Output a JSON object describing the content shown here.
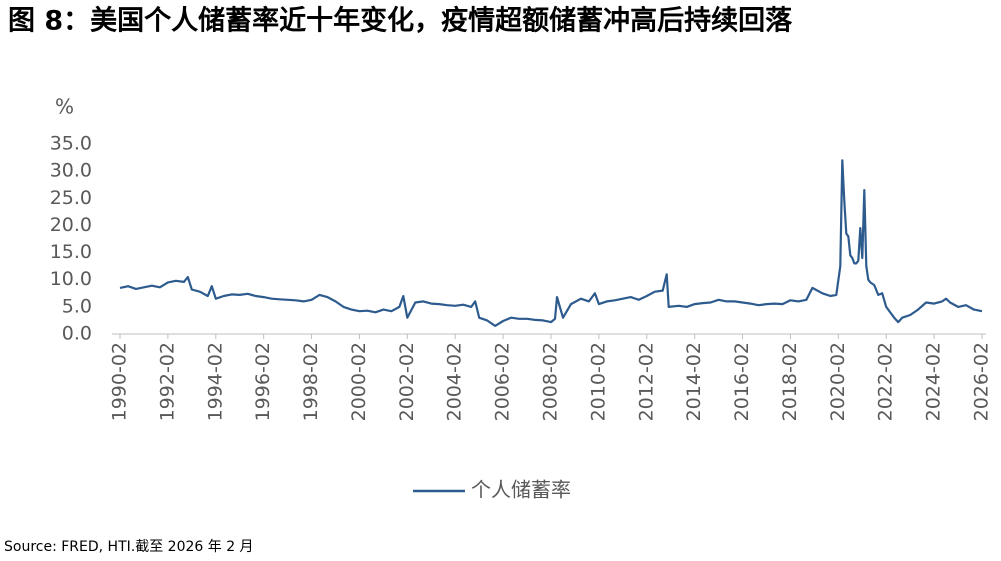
{
  "chart_data": {
    "type": "line",
    "title": "图 8：美国个人储蓄率近十年变化，疫情超额储蓄冲高后持续回落",
    "y_label": "%",
    "source": "Source: FRED, HTI.截至 2026 年 2 月",
    "x": [
      "1990-02",
      "1990-06",
      "1990-10",
      "1991-02",
      "1991-06",
      "1991-10",
      "1992-02",
      "1992-06",
      "1992-10",
      "1992-12",
      "1993-02",
      "1993-06",
      "1993-10",
      "1993-12",
      "1994-02",
      "1994-06",
      "1994-10",
      "1995-02",
      "1995-06",
      "1995-10",
      "1996-02",
      "1996-06",
      "1996-10",
      "1997-02",
      "1997-06",
      "1997-10",
      "1998-02",
      "1998-06",
      "1998-10",
      "1999-02",
      "1999-06",
      "1999-10",
      "2000-02",
      "2000-06",
      "2000-10",
      "2001-02",
      "2001-06",
      "2001-10",
      "2001-12",
      "2002-02",
      "2002-06",
      "2002-10",
      "2003-02",
      "2003-06",
      "2003-10",
      "2004-02",
      "2004-06",
      "2004-10",
      "2004-12",
      "2005-02",
      "2005-06",
      "2005-10",
      "2006-02",
      "2006-06",
      "2006-10",
      "2007-02",
      "2007-06",
      "2007-10",
      "2008-02",
      "2008-04",
      "2008-05",
      "2008-08",
      "2008-12",
      "2009-05",
      "2009-09",
      "2009-12",
      "2010-02",
      "2010-06",
      "2010-10",
      "2011-02",
      "2011-06",
      "2011-10",
      "2012-02",
      "2012-06",
      "2012-10",
      "2012-12",
      "2013-01",
      "2013-06",
      "2013-10",
      "2014-02",
      "2014-06",
      "2014-10",
      "2015-02",
      "2015-06",
      "2015-10",
      "2016-02",
      "2016-06",
      "2016-10",
      "2017-02",
      "2017-06",
      "2017-10",
      "2018-02",
      "2018-06",
      "2018-10",
      "2019-01",
      "2019-06",
      "2019-10",
      "2020-01",
      "2020-03",
      "2020-04",
      "2020-05",
      "2020-06",
      "2020-07",
      "2020-08",
      "2020-09",
      "2020-10",
      "2020-11",
      "2020-12",
      "2021-01",
      "2021-02",
      "2021-03",
      "2021-04",
      "2021-05",
      "2021-06",
      "2021-08",
      "2021-10",
      "2021-12",
      "2022-02",
      "2022-06",
      "2022-08",
      "2022-10",
      "2023-02",
      "2023-06",
      "2023-10",
      "2024-02",
      "2024-06",
      "2024-08",
      "2024-10",
      "2025-02",
      "2025-06",
      "2025-10",
      "2026-02"
    ],
    "series": [
      {
        "name": "个人储蓄率",
        "color": "#2e5b8e",
        "values": [
          8.5,
          8.8,
          8.3,
          8.6,
          8.9,
          8.6,
          9.5,
          9.8,
          9.6,
          10.5,
          8.2,
          7.8,
          7.0,
          8.8,
          6.5,
          7.0,
          7.3,
          7.2,
          7.4,
          7.0,
          6.8,
          6.5,
          6.4,
          6.3,
          6.2,
          6.0,
          6.3,
          7.2,
          6.8,
          6.0,
          5.0,
          4.5,
          4.2,
          4.3,
          4.0,
          4.5,
          4.2,
          5.0,
          7.0,
          3.0,
          5.8,
          6.0,
          5.6,
          5.5,
          5.3,
          5.2,
          5.4,
          5.0,
          6.0,
          3.0,
          2.5,
          1.5,
          2.4,
          3.0,
          2.8,
          2.8,
          2.6,
          2.5,
          2.2,
          2.8,
          6.8,
          3.0,
          5.5,
          6.5,
          6.0,
          7.5,
          5.5,
          6.0,
          6.2,
          6.5,
          6.8,
          6.3,
          7.0,
          7.8,
          8.0,
          11.0,
          5.0,
          5.2,
          5.0,
          5.5,
          5.7,
          5.8,
          6.3,
          6.0,
          6.0,
          5.8,
          5.6,
          5.3,
          5.5,
          5.6,
          5.5,
          6.2,
          6.0,
          6.3,
          8.5,
          7.5,
          7.0,
          7.2,
          12.5,
          32.0,
          24.5,
          18.5,
          18.0,
          14.5,
          14.0,
          13.0,
          13.0,
          13.5,
          19.5,
          14.0,
          26.5,
          12.5,
          10.0,
          9.5,
          9.0,
          7.2,
          7.5,
          5.0,
          3.0,
          2.2,
          3.0,
          3.5,
          4.5,
          5.8,
          5.6,
          6.0,
          6.5,
          5.8,
          5.0,
          5.3,
          4.5,
          4.2
        ]
      }
    ],
    "xlim": [
      "1990-02",
      "2026-02"
    ],
    "xticks": [
      "1990-02",
      "1992-02",
      "1994-02",
      "1996-02",
      "1998-02",
      "2000-02",
      "2002-02",
      "2004-02",
      "2006-02",
      "2008-02",
      "2010-02",
      "2012-02",
      "2014-02",
      "2016-02",
      "2018-02",
      "2020-02",
      "2022-02",
      "2024-02",
      "2026-02"
    ],
    "ylim": [
      0,
      35
    ],
    "yticks": [
      {
        "value": 0,
        "label": "0.0"
      },
      {
        "value": 5,
        "label": "5.0"
      },
      {
        "value": 10,
        "label": "10.0"
      },
      {
        "value": 15,
        "label": "15.0"
      },
      {
        "value": 20,
        "label": "20.0"
      },
      {
        "value": 25,
        "label": "25.0"
      },
      {
        "value": 30,
        "label": "30.0"
      },
      {
        "value": 35,
        "label": "35.0"
      }
    ],
    "grid": false,
    "legend": "bottom"
  }
}
